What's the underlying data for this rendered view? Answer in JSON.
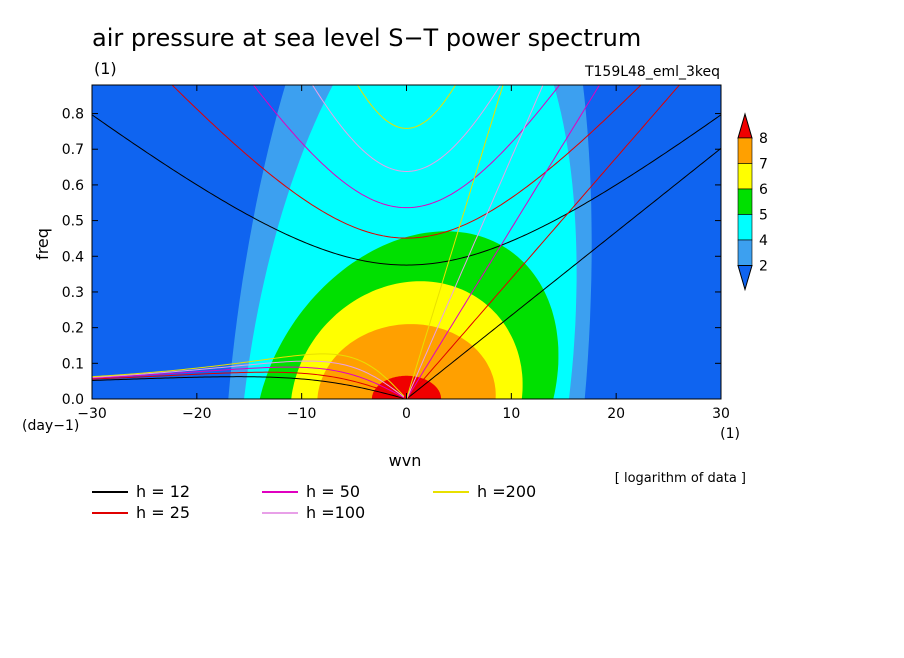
{
  "chart_data": {
    "type": "heatmap",
    "title": "air pressure at sea level S−T power spectrum",
    "title_unit": "(1)",
    "run_label": "T159L48_eml_3keq",
    "xlabel": "wvn",
    "ylabel": "freq",
    "x_unit": "(1)",
    "y_unit": "(day−1)",
    "note": "[ logarithm of data ]",
    "xlim": [
      -30,
      30
    ],
    "ylim": [
      0,
      0.88
    ],
    "x_ticks": [
      "−30",
      "−20",
      "−10",
      "0",
      "10",
      "20",
      "30"
    ],
    "x_tick_values": [
      -30,
      -20,
      -10,
      0,
      10,
      20,
      30
    ],
    "y_ticks": [
      "0.0",
      "0.1",
      "0.2",
      "0.3",
      "0.4",
      "0.5",
      "0.6",
      "0.7",
      "0.8"
    ],
    "y_tick_values": [
      0,
      0.1,
      0.2,
      0.3,
      0.4,
      0.5,
      0.6,
      0.7,
      0.8
    ],
    "colorbar": {
      "levels": [
        "2",
        "4",
        "5",
        "6",
        "7",
        "8"
      ],
      "colors": [
        "#0f64f0",
        "#3ca0f0",
        "#00ffff",
        "#00e000",
        "#ffff00",
        "#ffa000",
        "#f00000"
      ]
    },
    "field_peak": {
      "x": 0,
      "y": 0
    },
    "dispersion_legend": [
      {
        "label": "h = 12",
        "h": 12,
        "color": "#000000"
      },
      {
        "label": "h = 25",
        "h": 25,
        "color": "#e00000"
      },
      {
        "label": "h = 50",
        "h": 50,
        "color": "#e000c0"
      },
      {
        "label": "h =100",
        "h": 100,
        "color": "#e8a0e8"
      },
      {
        "label": "h =200",
        "h": 200,
        "color": "#e8e000"
      }
    ]
  }
}
